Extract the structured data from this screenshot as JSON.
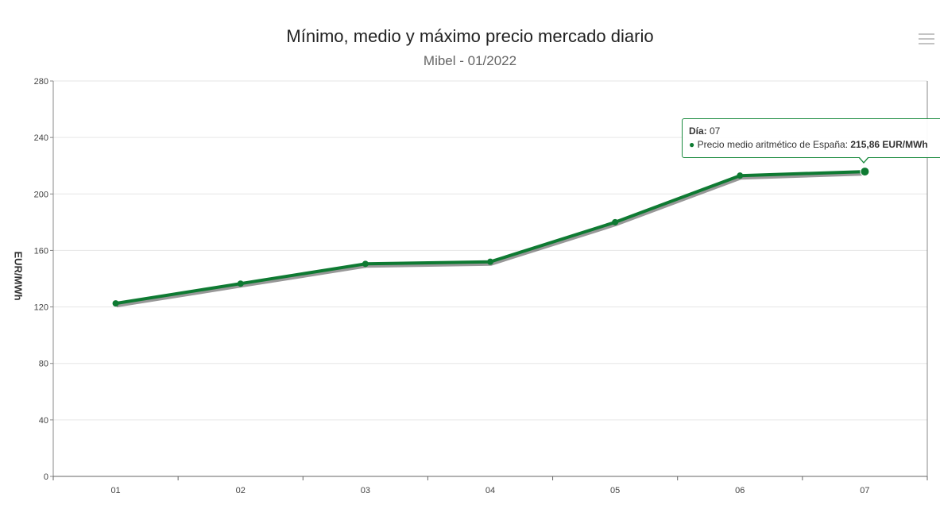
{
  "chart_data": {
    "type": "line",
    "title": "Mínimo, medio y máximo precio mercado diario",
    "subtitle": "Mibel - 01/2022",
    "ylabel": "EUR/MWh",
    "categories": [
      "01",
      "02",
      "03",
      "04",
      "05",
      "06",
      "07"
    ],
    "y_ticks": [
      "0",
      "40",
      "80",
      "120",
      "160",
      "200",
      "240",
      "280"
    ],
    "ylim": [
      0,
      280
    ],
    "grid": true,
    "series": [
      {
        "name": "Precio medio aritmético de España",
        "values": [
          122.5,
          136.5,
          150.5,
          152.0,
          180.0,
          213.0,
          215.86
        ],
        "color": "#0e7a32"
      }
    ]
  },
  "tooltip": {
    "label": "Día:",
    "value": " 07",
    "series_label": "Precio medio aritmético de España: ",
    "series_value": "215,86 EUR/MWh"
  },
  "menu": {
    "icon": "hamburger-menu-icon"
  }
}
